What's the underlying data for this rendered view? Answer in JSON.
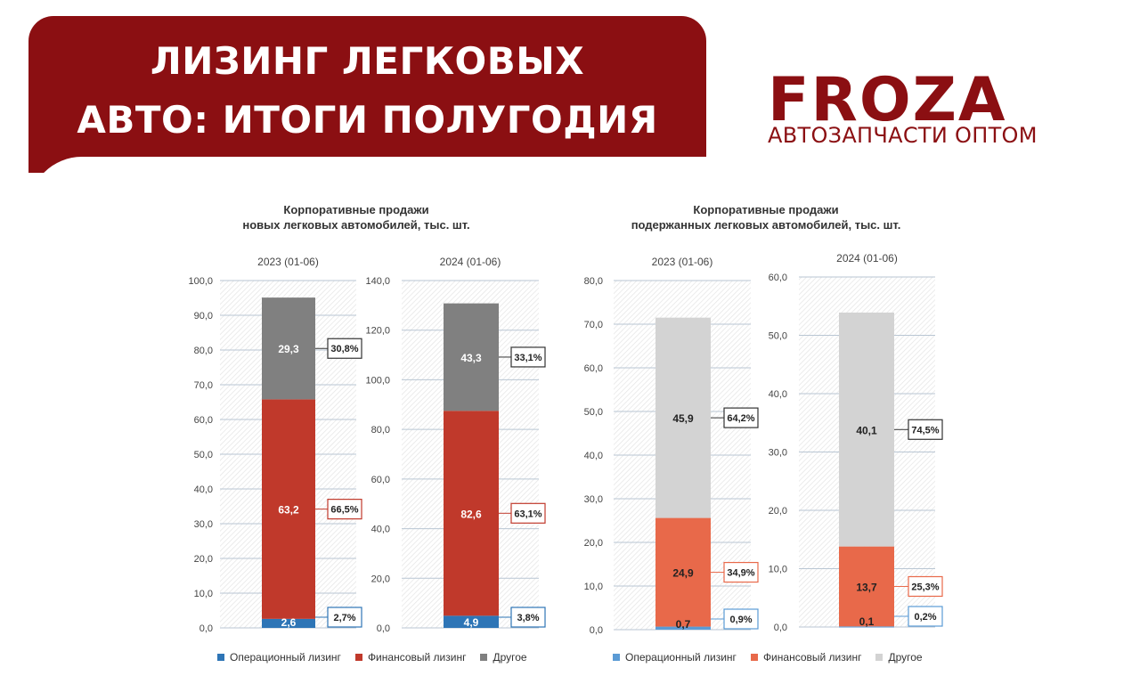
{
  "header": {
    "title_line1": "ЛИЗИНГ ЛЕГКОВЫХ",
    "title_line2": "АВТО: ИТОГИ ПОЛУГОДИЯ",
    "logo_text": "FROZA",
    "logo_subtitle": "АВТОЗАПЧАСТИ ОПТОМ",
    "brand_color": "#8b0f12"
  },
  "left_group": {
    "title_line1": "Корпоративные продажи",
    "title_line2": "новых легковых автомобилей, тыс. шт.",
    "legend": [
      {
        "label": "Операционный лизинг",
        "color": "#2e75b6"
      },
      {
        "label": "Финансовый лизинг",
        "color": "#c0392b"
      },
      {
        "label": "Другое",
        "color": "#808080"
      }
    ]
  },
  "right_group": {
    "title_line1": "Корпоративные продажи",
    "title_line2": "подержанных легковых автомобилей, тыс. шт.",
    "legend": [
      {
        "label": "Операционный лизинг",
        "color": "#5b9bd5"
      },
      {
        "label": "Финансовый лизинг",
        "color": "#e8694a"
      },
      {
        "label": "Другое",
        "color": "#d3d3d3"
      }
    ]
  },
  "chart_data": [
    {
      "type": "bar",
      "stacked": true,
      "title": "2023 (01-06)",
      "ylim": [
        0,
        100
      ],
      "yticks": [
        "0,0",
        "10,0",
        "20,0",
        "30,0",
        "40,0",
        "50,0",
        "60,0",
        "70,0",
        "80,0",
        "90,0",
        "100,0"
      ],
      "series": [
        {
          "name": "Операционный лизинг",
          "value": 2.6,
          "label": "2,6",
          "share": "2,7%",
          "color": "#2e75b6",
          "label_color": "#ffffff"
        },
        {
          "name": "Финансовый лизинг",
          "value": 63.2,
          "label": "63,2",
          "share": "66,5%",
          "color": "#c0392b",
          "label_color": "#ffffff"
        },
        {
          "name": "Другое",
          "value": 29.3,
          "label": "29,3",
          "share": "30,8%",
          "color": "#808080",
          "label_color": "#ffffff"
        }
      ]
    },
    {
      "type": "bar",
      "stacked": true,
      "title": "2024 (01-06)",
      "ylim": [
        0,
        140
      ],
      "yticks": [
        "0,0",
        "20,0",
        "40,0",
        "60,0",
        "80,0",
        "100,0",
        "120,0",
        "140,0"
      ],
      "series": [
        {
          "name": "Операционный лизинг",
          "value": 4.9,
          "label": "4,9",
          "share": "3,8%",
          "color": "#2e75b6",
          "label_color": "#ffffff"
        },
        {
          "name": "Финансовый лизинг",
          "value": 82.6,
          "label": "82,6",
          "share": "63,1%",
          "color": "#c0392b",
          "label_color": "#ffffff"
        },
        {
          "name": "Другое",
          "value": 43.3,
          "label": "43,3",
          "share": "33,1%",
          "color": "#808080",
          "label_color": "#ffffff"
        }
      ]
    },
    {
      "type": "bar",
      "stacked": true,
      "title": "2023 (01-06)",
      "ylim": [
        0,
        80
      ],
      "yticks": [
        "0,0",
        "10,0",
        "20,0",
        "30,0",
        "40,0",
        "50,0",
        "60,0",
        "70,0",
        "80,0"
      ],
      "series": [
        {
          "name": "Операционный лизинг",
          "value": 0.7,
          "label": "0,7",
          "share": "0,9%",
          "color": "#5b9bd5",
          "label_color": "#222222"
        },
        {
          "name": "Финансовый лизинг",
          "value": 24.9,
          "label": "24,9",
          "share": "34,9%",
          "color": "#e8694a",
          "label_color": "#222222"
        },
        {
          "name": "Другое",
          "value": 45.9,
          "label": "45,9",
          "share": "64,2%",
          "color": "#d3d3d3",
          "label_color": "#222222"
        }
      ]
    },
    {
      "type": "bar",
      "stacked": true,
      "title": "2024 (01-06)",
      "ylim": [
        0,
        60
      ],
      "yticks": [
        "0,0",
        "10,0",
        "20,0",
        "30,0",
        "40,0",
        "50,0",
        "60,0"
      ],
      "series": [
        {
          "name": "Операционный лизинг",
          "value": 0.1,
          "label": "0,1",
          "share": "0,2%",
          "color": "#5b9bd5",
          "label_color": "#222222"
        },
        {
          "name": "Финансовый лизинг",
          "value": 13.7,
          "label": "13,7",
          "share": "25,3%",
          "color": "#e8694a",
          "label_color": "#222222"
        },
        {
          "name": "Другое",
          "value": 40.1,
          "label": "40,1",
          "share": "74,5%",
          "color": "#d3d3d3",
          "label_color": "#222222"
        }
      ]
    }
  ]
}
